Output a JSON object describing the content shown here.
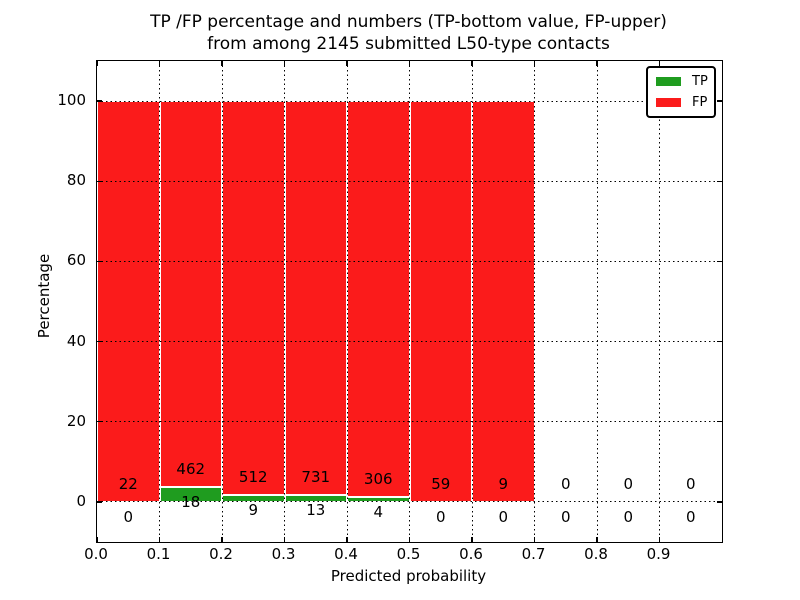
{
  "chart_data": {
    "type": "bar",
    "subtype": "stacked-percentage-histogram",
    "title_line1": "TP /FP percentage and numbers (TP-bottom value, FP-upper)",
    "title_line2": "from among 2145 submitted L50-type contacts",
    "xlabel": "Predicted probability",
    "ylabel": "Percentage",
    "xlim": [
      0.0,
      1.0
    ],
    "ylim": [
      -10,
      110
    ],
    "x_ticks": [
      "0.0",
      "0.1",
      "0.2",
      "0.3",
      "0.4",
      "0.5",
      "0.6",
      "0.7",
      "0.8",
      "0.9"
    ],
    "y_ticks": [
      "0",
      "20",
      "40",
      "60",
      "80",
      "100"
    ],
    "grid": {
      "style": "dotted",
      "color": "#000000",
      "drawn_above_bars": true
    },
    "bin_edges": [
      0.0,
      0.1,
      0.2,
      0.3,
      0.4,
      0.5,
      0.6,
      0.7,
      0.8,
      0.9,
      1.0
    ],
    "normalized_to": 100,
    "series": [
      {
        "name": "TP",
        "color": "#1f9c1f",
        "counts": [
          0,
          18,
          9,
          13,
          4,
          0,
          0,
          0,
          0,
          0
        ]
      },
      {
        "name": "FP",
        "color": "#fb1b1b",
        "counts": [
          22,
          462,
          512,
          731,
          306,
          59,
          9,
          0,
          0,
          0
        ]
      }
    ],
    "tp_percent_per_bin": [
      0,
      3.75,
      1.73,
      1.75,
      1.29,
      0,
      0,
      null,
      null,
      null
    ],
    "fp_percent_per_bin": [
      100,
      96.25,
      98.27,
      98.25,
      98.71,
      100,
      100,
      null,
      null,
      null
    ],
    "legend_position": "upper right",
    "annotation_note": "FP count printed above green segment, TP count printed below zero line"
  }
}
